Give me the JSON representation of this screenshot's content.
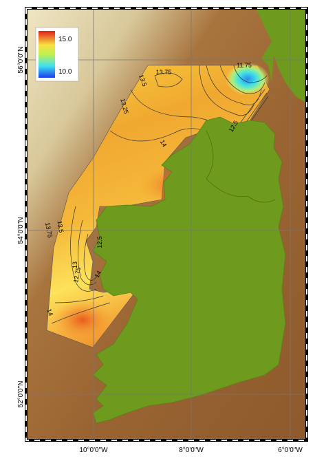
{
  "map": {
    "lat_labels": [
      "56°0'0\"N",
      "54°0'0\"N",
      "52°0'0\"N"
    ],
    "lon_labels": [
      "10°0'0\"W",
      "8°0'0\"W",
      "6°0'0\"W"
    ],
    "legend": {
      "high": "15.0",
      "low": "10.0"
    },
    "contour_labels": [
      "13.75",
      "13.5",
      "13.25",
      "14",
      "11.75",
      "12.5",
      "12.75",
      "13",
      "13.75",
      "13.5",
      "14",
      "14",
      "12.5"
    ]
  }
}
